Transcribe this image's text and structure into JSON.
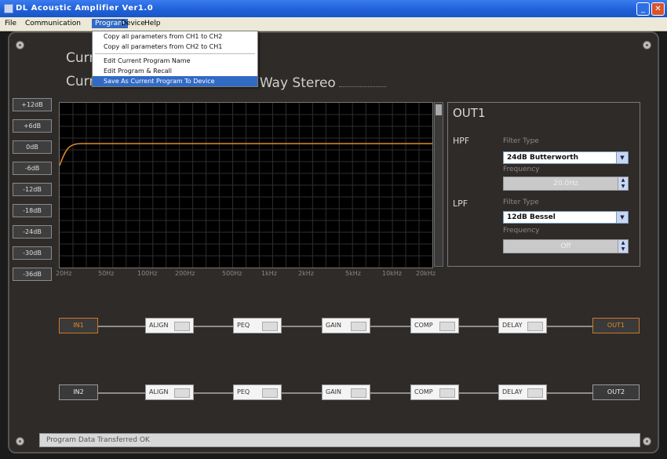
{
  "window": {
    "title": "DL Acoustic Amplifier Ver1.0"
  },
  "menubar": {
    "file": "File",
    "communication": "Communication",
    "program": "Program",
    "device": "Device",
    "help": "Help"
  },
  "program_menu": {
    "items": [
      "Copy all parameters from CH1 to CH2",
      "Copy all parameters from CH2 to CH1",
      "Edit Current Program Name",
      "Edit Program & Recall",
      "Save As Current Program To Device"
    ],
    "selected_index": 4
  },
  "header": {
    "current_line1": "Curr",
    "current_line2": "Curr",
    "mode": "2Way Stereo"
  },
  "level_buttons": [
    "+12dB",
    "+6dB",
    "0dB",
    "-6dB",
    "-12dB",
    "-18dB",
    "-24dB",
    "-30dB",
    "-36dB"
  ],
  "graph": {
    "x_labels": [
      "20Hz",
      "50Hz",
      "100Hz",
      "200Hz",
      "500Hz",
      "1kHz",
      "2kHz",
      "5kHz",
      "10kHz",
      "20kHz"
    ],
    "curve_color": "#e08a2a"
  },
  "output": {
    "title": "OUT1",
    "hpf_label": "HPF",
    "lpf_label": "LPF",
    "hpf_filter_type_label": "Filter Type",
    "hpf_filter_type": "24dB Butterworth",
    "hpf_frequency_label": "Frequency",
    "hpf_frequency": "20.0Hz",
    "lpf_filter_type_label": "Filter Type",
    "lpf_filter_type": "12dB Bessel",
    "lpf_frequency_label": "Frequency",
    "lpf_frequency": "Off"
  },
  "chain1": {
    "input": "IN1",
    "output": "OUT1",
    "modules": [
      "ALIGN",
      "PEQ",
      "GAIN",
      "COMP",
      "DELAY"
    ]
  },
  "chain2": {
    "input": "IN2",
    "output": "OUT2",
    "modules": [
      "ALIGN",
      "PEQ",
      "GAIN",
      "COMP",
      "DELAY"
    ]
  },
  "status": {
    "text": "Program Data Transferred OK"
  }
}
